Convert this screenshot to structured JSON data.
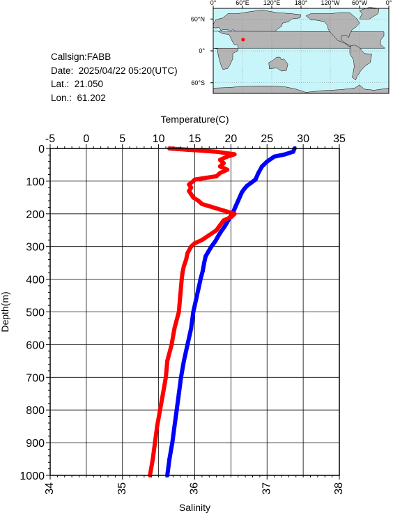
{
  "info": {
    "callsign": "Callsign:FABB",
    "date": "Date:  2025/04/22 05:20(UTC)",
    "lat": "Lat.:  21.050",
    "lon": "Lon.:  61.202"
  },
  "map": {
    "lon_labels": [
      "0°",
      "60°E",
      "120°E",
      "180°",
      "120°W",
      "60°W",
      "0°"
    ],
    "lat_labels": [
      "60°N",
      "0°",
      "60°S"
    ],
    "ocean_color": "#c8f5fa",
    "land_color": "#b4b4b4",
    "marker_color": "#ff0000",
    "marker_lat": 21.05,
    "marker_lon": 61.202
  },
  "chart_data": {
    "type": "line",
    "ylabel": "Depth(m)",
    "ylim": [
      0,
      1000
    ],
    "y_ticks": [
      "0",
      "100",
      "200",
      "300",
      "400",
      "500",
      "600",
      "700",
      "800",
      "900",
      "1000"
    ],
    "top_axis": {
      "label": "Temperature(C)",
      "lim": [
        -5,
        35
      ],
      "ticks": [
        "-5",
        "0",
        "5",
        "10",
        "15",
        "20",
        "25",
        "30",
        "35"
      ]
    },
    "bottom_axis": {
      "label": "Salinity",
      "lim": [
        34,
        38
      ],
      "ticks": [
        "34",
        "35",
        "36",
        "37",
        "38"
      ]
    },
    "series": [
      {
        "color": "#0000ff",
        "axis": "top",
        "points": [
          [
            28.8,
            0
          ],
          [
            28.6,
            10
          ],
          [
            27.5,
            18
          ],
          [
            26,
            25
          ],
          [
            25,
            40
          ],
          [
            24.3,
            55
          ],
          [
            23.8,
            75
          ],
          [
            23.4,
            95
          ],
          [
            22.8,
            105
          ],
          [
            22.2,
            115
          ],
          [
            21.8,
            125
          ],
          [
            21.5,
            135
          ],
          [
            21.2,
            150
          ],
          [
            20.9,
            165
          ],
          [
            20.6,
            180
          ],
          [
            20.3,
            195
          ],
          [
            19.9,
            210
          ],
          [
            19.5,
            225
          ],
          [
            19.1,
            240
          ],
          [
            18.6,
            255
          ],
          [
            18.2,
            270
          ],
          [
            17.8,
            285
          ],
          [
            17.3,
            300
          ],
          [
            16.9,
            315
          ],
          [
            16.5,
            330
          ],
          [
            16.3,
            350
          ],
          [
            16.1,
            375
          ],
          [
            15.8,
            400
          ],
          [
            15.5,
            430
          ],
          [
            15.2,
            460
          ],
          [
            14.8,
            500
          ],
          [
            14.5,
            550
          ],
          [
            14.0,
            600
          ],
          [
            13.5,
            650
          ],
          [
            13.1,
            700
          ],
          [
            12.8,
            750
          ],
          [
            12.5,
            800
          ],
          [
            12.2,
            850
          ],
          [
            11.9,
            900
          ],
          [
            11.5,
            950
          ],
          [
            11.2,
            1000
          ]
        ]
      },
      {
        "color": "#ff0000",
        "axis": "bottom",
        "points": [
          [
            35.65,
            0
          ],
          [
            35.9,
            4
          ],
          [
            36.05,
            6
          ],
          [
            36.3,
            10
          ],
          [
            36.55,
            18
          ],
          [
            36.45,
            25
          ],
          [
            36.35,
            35
          ],
          [
            36.4,
            45
          ],
          [
            36.35,
            55
          ],
          [
            36.45,
            65
          ],
          [
            36.35,
            75
          ],
          [
            36.3,
            85
          ],
          [
            36.15,
            90
          ],
          [
            36.0,
            95
          ],
          [
            35.98,
            100
          ],
          [
            35.92,
            110
          ],
          [
            35.95,
            120
          ],
          [
            35.92,
            130
          ],
          [
            35.95,
            140
          ],
          [
            35.98,
            150
          ],
          [
            36.05,
            160
          ],
          [
            36.1,
            170
          ],
          [
            36.25,
            180
          ],
          [
            36.4,
            190
          ],
          [
            36.55,
            200
          ],
          [
            36.5,
            210
          ],
          [
            36.4,
            220
          ],
          [
            36.35,
            235
          ],
          [
            36.3,
            250
          ],
          [
            36.2,
            265
          ],
          [
            36.1,
            280
          ],
          [
            36.0,
            290
          ],
          [
            35.95,
            300
          ],
          [
            35.9,
            320
          ],
          [
            35.88,
            340
          ],
          [
            35.85,
            360
          ],
          [
            35.83,
            380
          ],
          [
            35.82,
            400
          ],
          [
            35.8,
            450
          ],
          [
            35.78,
            500
          ],
          [
            35.72,
            550
          ],
          [
            35.68,
            600
          ],
          [
            35.62,
            650
          ],
          [
            35.6,
            700
          ],
          [
            35.56,
            750
          ],
          [
            35.52,
            800
          ],
          [
            35.48,
            850
          ],
          [
            35.45,
            900
          ],
          [
            35.42,
            950
          ],
          [
            35.38,
            1000
          ]
        ]
      }
    ]
  }
}
